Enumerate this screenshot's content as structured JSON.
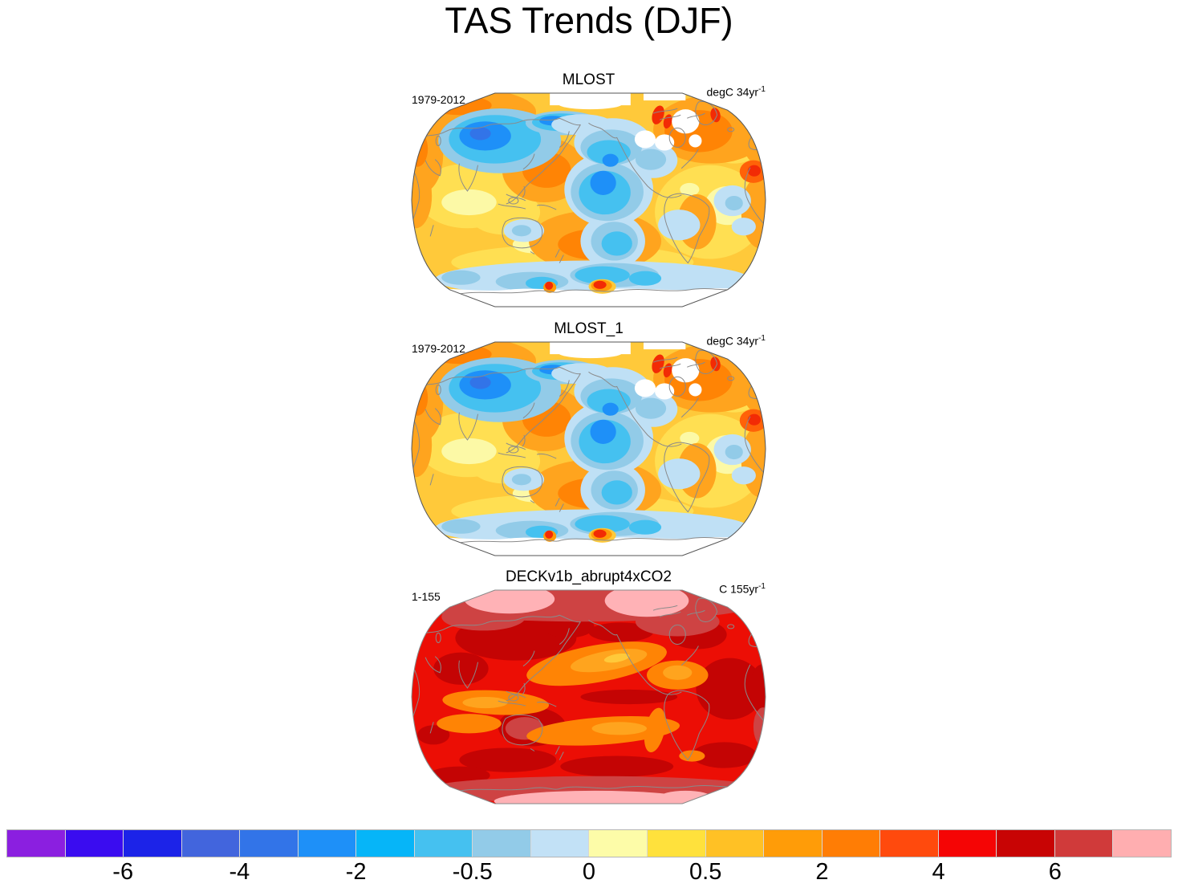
{
  "title": "TAS Trends (DJF)",
  "panels": [
    {
      "title": "MLOST",
      "left_label": "1979-2012",
      "units": "degC 34yr",
      "units_exponent": "-1"
    },
    {
      "title": "MLOST_1",
      "left_label": "1979-2012",
      "units": "degC 34yr",
      "units_exponent": "-1"
    },
    {
      "title": "DECKv1b_abrupt4xCO2",
      "left_label": "1-155",
      "units": "C 155yr",
      "units_exponent": "-1"
    }
  ],
  "colorbar": {
    "tick_labels": [
      "-6",
      "-4",
      "-2",
      "-0.5",
      "0",
      "0.5",
      "2",
      "4",
      "6"
    ],
    "segment_colors": [
      "#8B1FE0",
      "#3A0CF0",
      "#1C23E8",
      "#4265DD",
      "#3274E8",
      "#1E90F8",
      "#06B5F8",
      "#45C1F0",
      "#92CBE8",
      "#C2E1F6",
      "#FDFCA8",
      "#FFE13C",
      "#FFC125",
      "#FF9C08",
      "#FF7D05",
      "#FF4A0D",
      "#F50505",
      "#C80404",
      "#D03A3A",
      "#FFAEB0"
    ]
  },
  "chart_data": {
    "type": "heatmap",
    "title": "TAS Trends (DJF)",
    "panels": [
      {
        "title": "MLOST",
        "time_range": "1979-2012",
        "units": "degC 34yr^-1",
        "pattern": "Observed DJF surface air temperature trend: cooling (blue) over central/eastern Pacific, Siberia and Southern Ocean; warming (yellow/orange/red) over Canada, Eurasia and most other regions; white over Antarctica, Arctic and Hudson Bay (no data)"
      },
      {
        "title": "MLOST_1",
        "time_range": "1979-2012",
        "units": "degC 34yr^-1",
        "pattern": "Identical pattern to MLOST panel"
      },
      {
        "title": "DECKv1b_abrupt4xCO2",
        "time_range": "1-155",
        "units": "C 155yr^-1",
        "pattern": "Model abrupt-4xCO2 trend: strong warming everywhere (reds), weaker orange bands over Pacific/Atlantic oceans, strongest warming (pink) at Arctic and Antarctic"
      }
    ],
    "colorbar_tick_values": [
      -6,
      -4,
      -2,
      -0.5,
      0,
      0.5,
      2,
      4,
      6
    ],
    "n_color_segments": 20,
    "legend_position": "bottom",
    "projection": "robinson-style global maps"
  }
}
